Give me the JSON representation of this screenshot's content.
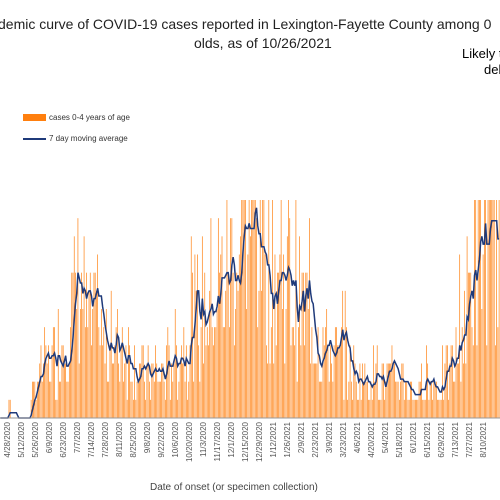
{
  "chart_data": {
    "type": "bar",
    "title_line1": "demic curve of COVID-19 cases reported in Lexington-Fayette County among 0",
    "title_line2": "olds, as of 10/26/2021",
    "annotation_line1": "Likely t",
    "annotation_line2": "del",
    "xlabel": "Date of onset (or specimen collection)",
    "ylabel": "",
    "ylim": [
      0,
      12
    ],
    "legend_position": "top-left",
    "grid": false,
    "series": [
      {
        "name": "cases 0-4 years of age",
        "type": "bar",
        "color": "#ff7f0e",
        "keypoints": [
          [
            0,
            0
          ],
          [
            20,
            0
          ],
          [
            25,
            1
          ],
          [
            30,
            2
          ],
          [
            40,
            3
          ],
          [
            50,
            4
          ],
          [
            60,
            6
          ],
          [
            65,
            7
          ],
          [
            70,
            5
          ],
          [
            80,
            4
          ],
          [
            90,
            3
          ],
          [
            100,
            4
          ],
          [
            110,
            3
          ],
          [
            120,
            2
          ],
          [
            130,
            2
          ],
          [
            140,
            3
          ],
          [
            150,
            4
          ],
          [
            160,
            5
          ],
          [
            170,
            6
          ],
          [
            180,
            7
          ],
          [
            190,
            8
          ],
          [
            200,
            9
          ],
          [
            205,
            11
          ],
          [
            210,
            10
          ],
          [
            220,
            8
          ],
          [
            230,
            7
          ],
          [
            240,
            6
          ],
          [
            250,
            5
          ],
          [
            260,
            4
          ],
          [
            270,
            3
          ],
          [
            280,
            3
          ],
          [
            290,
            2
          ],
          [
            300,
            2
          ],
          [
            310,
            2
          ],
          [
            320,
            2
          ],
          [
            330,
            2
          ],
          [
            340,
            1
          ],
          [
            350,
            2
          ],
          [
            360,
            2
          ],
          [
            370,
            3
          ],
          [
            380,
            6
          ],
          [
            390,
            9
          ],
          [
            400,
            11
          ],
          [
            405,
            12
          ]
        ],
        "note": "approximate daily case counts; dense daily bars"
      },
      {
        "name": "7 day moving average",
        "type": "line",
        "color": "#1f3a7a"
      }
    ],
    "x_tick_labels": [
      "4/28/2020",
      "5/12/2020",
      "5/26/2020",
      "6/9/2020",
      "6/23/2020",
      "7/7/2020",
      "7/14/2020",
      "7/28/2020",
      "8/11/2020",
      "8/25/2020",
      "9/8/2020",
      "9/22/2020",
      "10/6/2020",
      "10/20/2020",
      "11/3/2020",
      "11/17/2020",
      "12/1/2020",
      "12/15/2020",
      "12/29/2020",
      "1/12/2021",
      "1/26/2021",
      "2/9/2021",
      "2/23/2021",
      "3/9/2021",
      "3/23/2021",
      "4/6/2021",
      "4/20/2021",
      "5/4/2021",
      "5/18/2021",
      "6/1/2021",
      "6/15/2021",
      "6/29/2021",
      "7/13/2021",
      "7/27/2021",
      "8/10/2021"
    ],
    "colors": {
      "bar": "#ff7f0e",
      "line": "#1f3a7a",
      "axis": "#999999"
    }
  }
}
